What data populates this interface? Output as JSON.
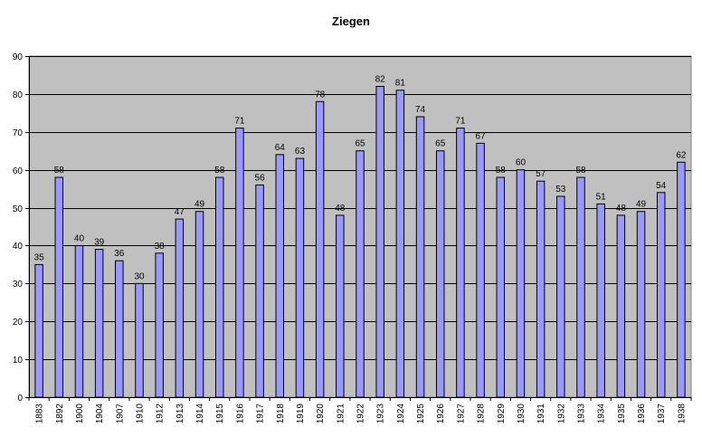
{
  "chart_data": {
    "type": "bar",
    "title": "Ziegen",
    "xlabel": "",
    "ylabel": "",
    "categories": [
      "1883",
      "1892",
      "1900",
      "1904",
      "1907",
      "1910",
      "1912",
      "1913",
      "1914",
      "1915",
      "1916",
      "1917",
      "1918",
      "1919",
      "1920",
      "1921",
      "1922",
      "1923",
      "1924",
      "1925",
      "1926",
      "1927",
      "1928",
      "1929",
      "1930",
      "1931",
      "1932",
      "1933",
      "1934",
      "1935",
      "1936",
      "1937",
      "1938"
    ],
    "series": [
      {
        "values": [
          35,
          58,
          40,
          39,
          36,
          30,
          38,
          47,
          49,
          58,
          71,
          56,
          64,
          63,
          78,
          48,
          65,
          82,
          81,
          74,
          65,
          71,
          67,
          58,
          60,
          57,
          53,
          58,
          51,
          48,
          49,
          54,
          62
        ]
      }
    ],
    "ylim": [
      0,
      90
    ],
    "yticks": [
      0,
      10,
      20,
      30,
      40,
      50,
      60,
      70,
      80,
      90
    ],
    "grid": true,
    "data_labels": true,
    "legend": "none",
    "colors": {
      "bar": "#9999ff",
      "bar_stroke": "#000000",
      "plot_bg": "#c0c0c0",
      "grid": "#000000"
    }
  }
}
